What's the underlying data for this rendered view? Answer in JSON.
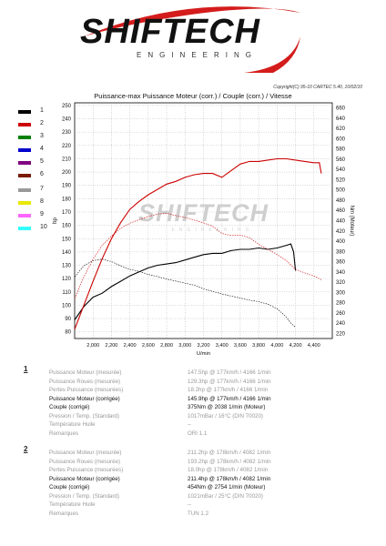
{
  "logo": {
    "word": "SHIFTECH",
    "sub": "ENGINEERING"
  },
  "copyright": "Copyright(C) 95-10 CARTEC 5.40, 10/02/10",
  "chart_title": "Puissance-max Puissance Moteur (corr.) / Couple (corr.) / Vitesse",
  "legend": [
    {
      "label": "1",
      "color": "#000000"
    },
    {
      "label": "2",
      "color": "#cc0000"
    },
    {
      "label": "3",
      "color": "#008000"
    },
    {
      "label": "4",
      "color": "#0000cc"
    },
    {
      "label": "5",
      "color": "#800080"
    },
    {
      "label": "6",
      "color": "#7a1a00"
    },
    {
      "label": "7",
      "color": "#999999"
    },
    {
      "label": "8",
      "color": "#e8e800"
    },
    {
      "label": "9",
      "color": "#ff66ff"
    },
    {
      "label": "10",
      "color": "#33ffff"
    }
  ],
  "chart_data": {
    "type": "line",
    "xlabel": "U/min",
    "ylabel_left": "hp",
    "ylabel_right": "Nm (Moteur)",
    "xlim": [
      1800,
      4600
    ],
    "ylim_left": [
      75,
      252
    ],
    "ylim_right": [
      210,
      670
    ],
    "x_ticks": [
      "2,000",
      "2,200",
      "2,400",
      "2,600",
      "2,800",
      "3,000",
      "3,200",
      "3,400",
      "3,600",
      "3,800",
      "4,000",
      "4,200",
      "4,400"
    ],
    "y_ticks_left": [
      "80",
      "90",
      "100",
      "110",
      "120",
      "130",
      "140",
      "150",
      "160",
      "170",
      "180",
      "190",
      "200",
      "210",
      "220",
      "230",
      "240",
      "250"
    ],
    "y_ticks_right": [
      "220",
      "240",
      "260",
      "280",
      "300",
      "320",
      "340",
      "360",
      "380",
      "400",
      "420",
      "440",
      "460",
      "480",
      "500",
      "520",
      "540",
      "560",
      "580",
      "600",
      "620",
      "640",
      "660"
    ],
    "grid": true,
    "watermark": "SHIFTECH",
    "series": [
      {
        "name": "1",
        "axis": "left",
        "style": "solid",
        "color": "#000000",
        "x": [
          1800,
          1900,
          2000,
          2100,
          2200,
          2300,
          2400,
          2500,
          2600,
          2700,
          2800,
          2900,
          3000,
          3100,
          3200,
          3300,
          3400,
          3500,
          3600,
          3700,
          3800,
          3900,
          4000,
          4100,
          4150,
          4180,
          4200
        ],
        "y": [
          89,
          99,
          106,
          109,
          114,
          118,
          122,
          125,
          128,
          130,
          131,
          132,
          134,
          136,
          138,
          139,
          139,
          141,
          142,
          142,
          143,
          142,
          143,
          145,
          146,
          140,
          126
        ]
      },
      {
        "name": "1",
        "axis": "right",
        "style": "dashed",
        "color": "#000000",
        "x": [
          1800,
          1900,
          2000,
          2100,
          2200,
          2300,
          2400,
          2500,
          2600,
          2700,
          2800,
          2900,
          3000,
          3100,
          3200,
          3300,
          3400,
          3500,
          3600,
          3700,
          3800,
          3900,
          4000,
          4100,
          4150,
          4200
        ],
        "y": [
          330,
          352,
          362,
          365,
          360,
          352,
          345,
          341,
          335,
          331,
          326,
          322,
          318,
          314,
          307,
          302,
          297,
          293,
          289,
          285,
          282,
          277,
          268,
          252,
          240,
          232
        ]
      },
      {
        "name": "2",
        "axis": "left",
        "style": "solid",
        "color": "#cc0000",
        "x": [
          1800,
          1900,
          2000,
          2100,
          2200,
          2300,
          2400,
          2500,
          2600,
          2700,
          2800,
          2900,
          3000,
          3100,
          3200,
          3300,
          3400,
          3500,
          3600,
          3700,
          3800,
          3900,
          4000,
          4100,
          4200,
          4300,
          4400,
          4460,
          4480
        ],
        "y": [
          82,
          100,
          118,
          135,
          150,
          162,
          172,
          178,
          183,
          187,
          191,
          193,
          196,
          198,
          199,
          199,
          196,
          201,
          206,
          208,
          208,
          209,
          210,
          210,
          209,
          208,
          207,
          207,
          199
        ]
      },
      {
        "name": "2",
        "axis": "right",
        "style": "dashed",
        "color": "#cc0000",
        "x": [
          1800,
          1900,
          2000,
          2100,
          2200,
          2300,
          2400,
          2500,
          2600,
          2700,
          2800,
          2900,
          3000,
          3100,
          3200,
          3300,
          3400,
          3500,
          3600,
          3700,
          3800,
          3900,
          4000,
          4100,
          4200,
          4300,
          4400,
          4480
        ],
        "y": [
          288,
          330,
          365,
          392,
          410,
          425,
          435,
          442,
          448,
          453,
          454,
          450,
          446,
          441,
          436,
          429,
          415,
          411,
          412,
          407,
          394,
          384,
          374,
          362,
          345,
          338,
          332,
          325
        ]
      }
    ]
  },
  "runs": [
    {
      "num": "1",
      "rows": [
        {
          "k": "Puissance Moteur (mesurée)",
          "v": "147.5hp @ 177km/h / 4166 1/min",
          "dim": true
        },
        {
          "k": "Puissance Roues (mesurée)",
          "v": "129.3hp @ 177km/h / 4166 1/min",
          "dim": true
        },
        {
          "k": "Pertes Puissance (mesurées)",
          "v": "18.2hp @ 177km/h / 4166 1/min",
          "dim": true
        },
        {
          "k": "Puissance Moteur (corrigée)",
          "v": "145.9hp @ 177km/h / 4166 1/min",
          "dim": false
        },
        {
          "k": "Couple (corrigé)",
          "v": "375Nm @ 2038 1/min (Moteur)",
          "dim": false
        },
        {
          "k": "Pression / Temp. (Standard)",
          "v": "1017mBar / 16°C    (DIN 70020)",
          "dim": true
        },
        {
          "k": "Température Huile",
          "v": "--",
          "dim": true
        },
        {
          "k": "Remarques",
          "v": "ORI 1.1",
          "dim": true
        }
      ]
    },
    {
      "num": "2",
      "rows": [
        {
          "k": "Puissance Moteur (mesurée)",
          "v": "211.2hp @ 178km/h / 4082 1/min",
          "dim": true
        },
        {
          "k": "Puissance Roues (mesurée)",
          "v": "193.2hp @ 178km/h / 4082 1/min",
          "dim": true
        },
        {
          "k": "Pertes Puissance (mesurées)",
          "v": "18.0hp @ 178km/h / 4082 1/min",
          "dim": true
        },
        {
          "k": "Puissance Moteur (corrigée)",
          "v": "211.4hp @ 178km/h / 4082 1/min",
          "dim": false
        },
        {
          "k": "Couple (corrigé)",
          "v": "454Nm @ 2754 1/min (Moteur)",
          "dim": false
        },
        {
          "k": "Pression / Temp. (Standard)",
          "v": "1021mBar / 25°C    (DIN 70020)",
          "dim": true
        },
        {
          "k": "Température Huile",
          "v": "--",
          "dim": true
        },
        {
          "k": "Remarques",
          "v": "TUN 1.2",
          "dim": true
        }
      ]
    }
  ]
}
